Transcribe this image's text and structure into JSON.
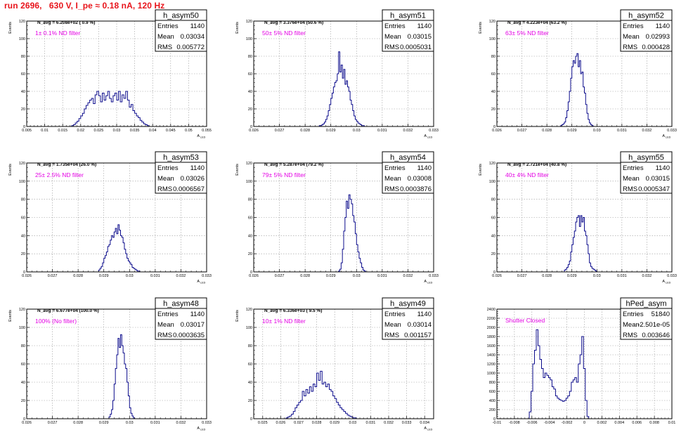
{
  "title": "run 2696,   630 V, I_pe ≈ 0.18 nA, 120 Hz",
  "colors": {
    "title": "#e8141b",
    "note": "#e400e4",
    "hist": "#0c0c8c",
    "grid": "#9a9a9a"
  },
  "chart_data": [
    {
      "type": "bar",
      "name": "h_asym50",
      "navg": "N_avg = 6.208e+02 ( 0.9 %)",
      "note": "1± 0.1% ND filter",
      "stats": {
        "entries_label": "Entries",
        "entries": "1140",
        "mean_label": "Mean",
        "mean": "0.03034",
        "rms_label": "RMS",
        "rms": "0.005772"
      },
      "ylabel": "Events",
      "xlabel": "A",
      "xlabel_sub": "LED",
      "xlim": [
        0.005,
        0.055
      ],
      "ylim": [
        0,
        120
      ],
      "xticks": [
        0.005,
        0.01,
        0.015,
        0.02,
        0.025,
        0.03,
        0.035,
        0.04,
        0.045,
        0.05,
        0.055
      ],
      "xtick_labels": [
        "0.005",
        "0.01",
        "0.015",
        "0.02",
        "0.025",
        "0.03",
        "0.035",
        "0.04",
        "0.045",
        "0.05",
        "0.055"
      ],
      "yticks": [
        0,
        20,
        40,
        60,
        80,
        100,
        120
      ],
      "ytick_labels": [
        "0",
        "20",
        "40",
        "60",
        "80",
        "100",
        "120"
      ],
      "bin_start": 0.005,
      "bin_width": 0.0005,
      "values": [
        0,
        0,
        0,
        0,
        0,
        0,
        0,
        0,
        0,
        0,
        0,
        0,
        0,
        0,
        0,
        0,
        0,
        0,
        0,
        0,
        0,
        0,
        0,
        0,
        0,
        1,
        2,
        4,
        6,
        9,
        12,
        15,
        20,
        24,
        27,
        30,
        32,
        26,
        36,
        40,
        35,
        28,
        38,
        30,
        35,
        40,
        32,
        28,
        35,
        38,
        30,
        40,
        28,
        36,
        32,
        40,
        30,
        22,
        25,
        18,
        15,
        12,
        10,
        7,
        5,
        3,
        2,
        1,
        0,
        0,
        0,
        0,
        0,
        0,
        0,
        0,
        0,
        0,
        0,
        0,
        0,
        0,
        0,
        0,
        0,
        0,
        0,
        0,
        0,
        0,
        0,
        0,
        0,
        0,
        0,
        0,
        0,
        0,
        0,
        0
      ]
    },
    {
      "type": "bar",
      "name": "h_asym51",
      "navg": "N_avg = 3.376e+04 (50.6 %)",
      "note": "50± 5% ND filter",
      "stats": {
        "entries_label": "Entries",
        "entries": "1140",
        "mean_label": "Mean",
        "mean": "0.03015",
        "rms_label": "RMS",
        "rms": "0.0005031"
      },
      "ylabel": "Events",
      "xlabel": "A",
      "xlabel_sub": "LED",
      "xlim": [
        0.026,
        0.033
      ],
      "ylim": [
        0,
        120
      ],
      "xticks": [
        0.026,
        0.027,
        0.028,
        0.029,
        0.03,
        0.031,
        0.032,
        0.033
      ],
      "xtick_labels": [
        "0.026",
        "0.027",
        "0.028",
        "0.029",
        "0.03",
        "0.031",
        "0.032",
        "0.033"
      ],
      "yticks": [
        0,
        20,
        40,
        60,
        80,
        100,
        120
      ],
      "ytick_labels": [
        "0",
        "20",
        "40",
        "60",
        "80",
        "100",
        "120"
      ],
      "bin_start": 0.0285,
      "bin_width": 5e-05,
      "values": [
        0,
        1,
        1,
        2,
        3,
        5,
        8,
        12,
        18,
        25,
        32,
        38,
        45,
        50,
        52,
        60,
        85,
        62,
        70,
        55,
        65,
        48,
        52,
        45,
        40,
        30,
        25,
        18,
        12,
        8,
        6,
        4,
        3,
        2,
        1,
        1,
        0,
        0,
        0,
        0
      ]
    },
    {
      "type": "bar",
      "name": "h_asym52",
      "navg": "N_avg = 4.223e+04 (63.2 %)",
      "note": "63± 5% ND filter",
      "stats": {
        "entries_label": "Entries",
        "entries": "1140",
        "mean_label": "Mean",
        "mean": "0.02993",
        "rms_label": "RMS",
        "rms": "0.000428"
      },
      "ylabel": "Events",
      "xlabel": "A",
      "xlabel_sub": "LED",
      "xlim": [
        0.026,
        0.033
      ],
      "ylim": [
        0,
        120
      ],
      "xticks": [
        0.026,
        0.027,
        0.028,
        0.029,
        0.03,
        0.031,
        0.032,
        0.033
      ],
      "xtick_labels": [
        "0.026",
        "0.027",
        "0.028",
        "0.029",
        "0.03",
        "0.031",
        "0.032",
        "0.033"
      ],
      "yticks": [
        0,
        20,
        40,
        60,
        80,
        100,
        120
      ],
      "ytick_labels": [
        "0",
        "20",
        "40",
        "60",
        "80",
        "100",
        "120"
      ],
      "bin_start": 0.0285,
      "bin_width": 5e-05,
      "values": [
        0,
        1,
        2,
        3,
        5,
        10,
        18,
        28,
        40,
        55,
        68,
        75,
        72,
        80,
        83,
        68,
        75,
        60,
        62,
        45,
        38,
        25,
        15,
        8,
        4,
        2,
        1,
        0,
        0,
        0
      ]
    },
    {
      "type": "bar",
      "name": "h_asym53",
      "navg": "N_avg = 1.735e+04 (26.0 %)",
      "note": "25± 2.5% ND filter",
      "stats": {
        "entries_label": "Entries",
        "entries": "1140",
        "mean_label": "Mean",
        "mean": "0.03026",
        "rms_label": "RMS",
        "rms": "0.0006567"
      },
      "ylabel": "Events",
      "xlabel": "A",
      "xlabel_sub": "LED",
      "xlim": [
        0.026,
        0.033
      ],
      "ylim": [
        0,
        120
      ],
      "xticks": [
        0.026,
        0.027,
        0.028,
        0.029,
        0.03,
        0.031,
        0.032,
        0.033
      ],
      "xtick_labels": [
        "0.026",
        "0.027",
        "0.028",
        "0.029",
        "0.03",
        "0.031",
        "0.032",
        "0.033"
      ],
      "yticks": [
        0,
        20,
        40,
        60,
        80,
        100,
        120
      ],
      "ytick_labels": [
        "0",
        "20",
        "40",
        "60",
        "80",
        "100",
        "120"
      ],
      "bin_start": 0.0288,
      "bin_width": 5e-05,
      "values": [
        2,
        4,
        6,
        10,
        15,
        18,
        22,
        28,
        30,
        35,
        40,
        38,
        44,
        48,
        42,
        52,
        46,
        40,
        38,
        32,
        25,
        20,
        15,
        12,
        10,
        8,
        5,
        4,
        3,
        2,
        1,
        1,
        0,
        0
      ]
    },
    {
      "type": "bar",
      "name": "h_asym54",
      "navg": "N_avg = 5.287e+04 (79.2 %)",
      "note": "79± 5% ND filter",
      "stats": {
        "entries_label": "Entries",
        "entries": "1140",
        "mean_label": "Mean",
        "mean": "0.03008",
        "rms_label": "RMS",
        "rms": "0.0003876"
      },
      "ylabel": "Events",
      "xlabel": "A",
      "xlabel_sub": "LED",
      "xlim": [
        0.026,
        0.033
      ],
      "ylim": [
        0,
        120
      ],
      "xticks": [
        0.026,
        0.027,
        0.028,
        0.029,
        0.03,
        0.031,
        0.032,
        0.033
      ],
      "xtick_labels": [
        "0.026",
        "0.027",
        "0.028",
        "0.029",
        "0.03",
        "0.031",
        "0.032",
        "0.033"
      ],
      "yticks": [
        0,
        20,
        40,
        60,
        80,
        100,
        120
      ],
      "ytick_labels": [
        "0",
        "20",
        "40",
        "60",
        "80",
        "100",
        "120"
      ],
      "bin_start": 0.0293,
      "bin_width": 5e-05,
      "values": [
        1,
        3,
        10,
        25,
        45,
        60,
        78,
        70,
        85,
        80,
        75,
        62,
        55,
        42,
        30,
        22,
        15,
        10,
        5,
        2,
        1,
        0
      ]
    },
    {
      "type": "bar",
      "name": "h_asym55",
      "navg": "N_avg = 2.721e+04 (40.8 %)",
      "note": "40± 4% ND filter",
      "stats": {
        "entries_label": "Entries",
        "entries": "1140",
        "mean_label": "Mean",
        "mean": "0.03015",
        "rms_label": "RMS",
        "rms": "0.0005347"
      },
      "ylabel": "Events",
      "xlabel": "A",
      "xlabel_sub": "LED",
      "xlim": [
        0.026,
        0.033
      ],
      "ylim": [
        0,
        120
      ],
      "xticks": [
        0.026,
        0.027,
        0.028,
        0.029,
        0.03,
        0.031,
        0.032,
        0.033
      ],
      "xtick_labels": [
        "0.026",
        "0.027",
        "0.028",
        "0.029",
        "0.03",
        "0.031",
        "0.032",
        "0.033"
      ],
      "yticks": [
        0,
        20,
        40,
        60,
        80,
        100,
        120
      ],
      "ytick_labels": [
        "0",
        "20",
        "40",
        "60",
        "80",
        "100",
        "120"
      ],
      "bin_start": 0.0287,
      "bin_width": 5e-05,
      "values": [
        2,
        3,
        5,
        8,
        12,
        22,
        30,
        38,
        45,
        55,
        60,
        62,
        50,
        62,
        55,
        60,
        45,
        40,
        30,
        20,
        10,
        6,
        4,
        3,
        2,
        1,
        0
      ]
    },
    {
      "type": "bar",
      "name": "h_asym48",
      "navg": "N_avg = 6.677e+04 (100.0 %)",
      "note": "100% (No filter)",
      "stats": {
        "entries_label": "Entries",
        "entries": "1140",
        "mean_label": "Mean",
        "mean": "0.03017",
        "rms_label": "RMS",
        "rms": "0.0003635"
      },
      "ylabel": "Events",
      "xlabel": "A",
      "xlabel_sub": "LED",
      "xlim": [
        0.026,
        0.033
      ],
      "ylim": [
        0,
        120
      ],
      "xticks": [
        0.026,
        0.027,
        0.028,
        0.029,
        0.03,
        0.031,
        0.032,
        0.033
      ],
      "xtick_labels": [
        "0.026",
        "0.027",
        "0.028",
        "0.029",
        "0.03",
        "0.031",
        "0.032",
        "0.033"
      ],
      "yticks": [
        0,
        20,
        40,
        60,
        80,
        100,
        120
      ],
      "ytick_labels": [
        "0",
        "20",
        "40",
        "60",
        "80",
        "100",
        "120"
      ],
      "bin_start": 0.0292,
      "bin_width": 5e-05,
      "values": [
        2,
        5,
        10,
        20,
        38,
        55,
        70,
        88,
        78,
        92,
        80,
        72,
        60,
        55,
        40,
        25,
        12,
        6,
        3,
        1,
        0
      ]
    },
    {
      "type": "bar",
      "name": "h_asym49",
      "navg": "N_avg = 6.336e+03 ( 9.5 %)",
      "note": "10± 1% ND filter",
      "stats": {
        "entries_label": "Entries",
        "entries": "1140",
        "mean_label": "Mean",
        "mean": "0.03014",
        "rms_label": "RMS",
        "rms": "0.001157"
      },
      "ylabel": "Events",
      "xlabel": "A",
      "xlabel_sub": "LED",
      "xlim": [
        0.0245,
        0.0345
      ],
      "ylim": [
        0,
        120
      ],
      "xticks": [
        0.025,
        0.026,
        0.027,
        0.028,
        0.029,
        0.03,
        0.031,
        0.032,
        0.033,
        0.034
      ],
      "xtick_labels": [
        "0.025",
        "0.026",
        "0.027",
        "0.028",
        "0.029",
        "0.03",
        "0.031",
        "0.032",
        "0.033",
        "0.034"
      ],
      "yticks": [
        0,
        20,
        40,
        60,
        80,
        100,
        120
      ],
      "ytick_labels": [
        "0",
        "20",
        "40",
        "60",
        "80",
        "100",
        "120"
      ],
      "bin_start": 0.0262,
      "bin_width": 0.0001,
      "values": [
        0,
        1,
        2,
        3,
        5,
        8,
        12,
        15,
        18,
        20,
        30,
        25,
        32,
        28,
        35,
        30,
        38,
        35,
        50,
        42,
        52,
        38,
        40,
        35,
        38,
        32,
        30,
        25,
        22,
        18,
        15,
        12,
        10,
        8,
        6,
        4,
        3,
        2,
        1,
        1,
        0
      ]
    },
    {
      "type": "bar",
      "name": "hPed_asym",
      "navg": "",
      "note": "Shutter Closed",
      "stats": {
        "entries_label": "Entries",
        "entries": "51840",
        "mean_label": "Mean",
        "mean": "-2.501e-05",
        "rms_label": "RMS",
        "rms": "0.003646"
      },
      "ylabel": "",
      "xlabel": "",
      "xlabel_sub": "",
      "xlim": [
        -0.01,
        0.01
      ],
      "ylim": [
        0,
        2400
      ],
      "xticks": [
        -0.01,
        -0.008,
        -0.006,
        -0.004,
        -0.002,
        0,
        0.002,
        0.004,
        0.006,
        0.008,
        0.01
      ],
      "xtick_labels": [
        "-0.01",
        "-0.008",
        "-0.006",
        "-0.004",
        "-0.002",
        "0",
        "0.002",
        "0.004",
        "0.006",
        "0.008",
        "0.01"
      ],
      "yticks": [
        0,
        200,
        400,
        600,
        800,
        1000,
        1200,
        1400,
        1600,
        1800,
        2000,
        2200,
        2400
      ],
      "ytick_labels": [
        "0",
        "200",
        "400",
        "600",
        "800",
        "1000",
        "1200",
        "1400",
        "1600",
        "1800",
        "2000",
        "2200",
        "2400"
      ],
      "bin_start": -0.0065,
      "bin_width": 0.0002,
      "values": [
        0,
        150,
        600,
        1200,
        1500,
        1950,
        1600,
        1300,
        1100,
        900,
        1000,
        950,
        900,
        850,
        700,
        650,
        500,
        450,
        420,
        400,
        380,
        400,
        450,
        500,
        600,
        800,
        850,
        900,
        800,
        1200,
        1400,
        1800,
        1100,
        400,
        50,
        0
      ]
    }
  ]
}
